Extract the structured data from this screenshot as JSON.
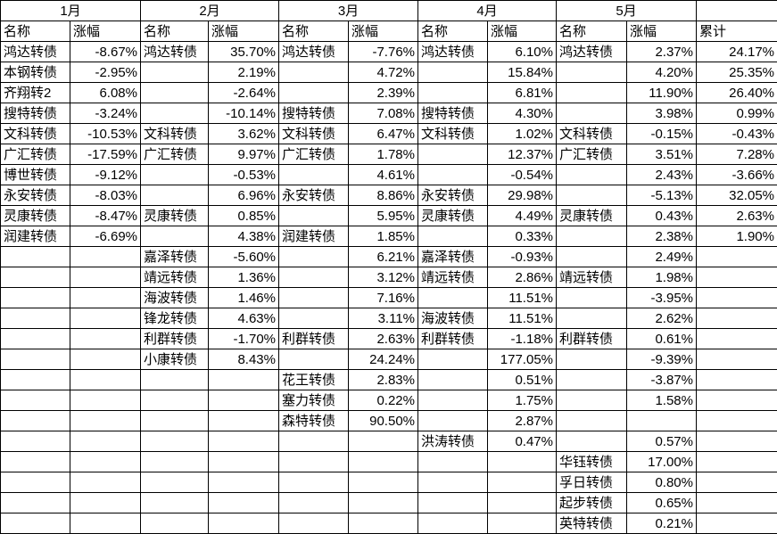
{
  "table": {
    "month_groups": [
      {
        "month": "1月",
        "col_headers": [
          "名称",
          "涨幅"
        ]
      },
      {
        "month": "2月",
        "col_headers": [
          "名称",
          "涨幅"
        ]
      },
      {
        "month": "3月",
        "col_headers": [
          "名称",
          "涨幅"
        ]
      },
      {
        "month": "4月",
        "col_headers": [
          "名称",
          "涨幅"
        ]
      },
      {
        "month": "5月",
        "col_headers": [
          "名称",
          "涨幅"
        ]
      }
    ],
    "cumulative_header": "累计",
    "rows": [
      [
        "鸿达转债",
        "-8.67%",
        "鸿达转债",
        "35.70%",
        "鸿达转债",
        "-7.76%",
        "鸿达转债",
        "6.10%",
        "鸿达转债",
        "2.37%",
        "24.17%"
      ],
      [
        "本钢转债",
        "-2.95%",
        "",
        "2.19%",
        "",
        "4.72%",
        "",
        "15.84%",
        "",
        "4.20%",
        "25.35%"
      ],
      [
        "齐翔转2",
        "6.08%",
        "",
        "-2.64%",
        "",
        "2.39%",
        "",
        "6.81%",
        "",
        "11.90%",
        "26.40%"
      ],
      [
        "搜特转债",
        "-3.24%",
        "",
        "-10.14%",
        "搜特转债",
        "7.08%",
        "搜特转债",
        "4.30%",
        "",
        "3.98%",
        "0.99%"
      ],
      [
        "文科转债",
        "-10.53%",
        "文科转债",
        "3.62%",
        "文科转债",
        "6.47%",
        "文科转债",
        "1.02%",
        "文科转债",
        "-0.15%",
        "-0.43%"
      ],
      [
        "广汇转债",
        "-17.59%",
        "广汇转债",
        "9.97%",
        "广汇转债",
        "1.78%",
        "",
        "12.37%",
        "广汇转债",
        "3.51%",
        "7.28%"
      ],
      [
        "博世转债",
        "-9.12%",
        "",
        "-0.53%",
        "",
        "4.61%",
        "",
        "-0.54%",
        "",
        "2.43%",
        "-3.66%"
      ],
      [
        "永安转债",
        "-8.03%",
        "",
        "6.96%",
        "永安转债",
        "8.86%",
        "永安转债",
        "29.98%",
        "",
        "-5.13%",
        "32.05%"
      ],
      [
        "灵康转债",
        "-8.47%",
        "灵康转债",
        "0.85%",
        "",
        "5.95%",
        "灵康转债",
        "4.49%",
        "灵康转债",
        "0.43%",
        "2.63%"
      ],
      [
        "润建转债",
        "-6.69%",
        "",
        "4.38%",
        "润建转债",
        "1.85%",
        "",
        "0.33%",
        "",
        "2.38%",
        "1.90%"
      ],
      [
        "",
        "",
        "嘉泽转债",
        "-5.60%",
        "",
        "6.21%",
        "嘉泽转债",
        "-0.93%",
        "",
        "2.49%",
        ""
      ],
      [
        "",
        "",
        "靖远转债",
        "1.36%",
        "",
        "3.12%",
        "靖远转债",
        "2.86%",
        "靖远转债",
        "1.98%",
        ""
      ],
      [
        "",
        "",
        "海波转债",
        "1.46%",
        "",
        "7.16%",
        "",
        "11.51%",
        "",
        "-3.95%",
        ""
      ],
      [
        "",
        "",
        "锋龙转债",
        "4.63%",
        "",
        "3.11%",
        "海波转债",
        "11.51%",
        "",
        "2.62%",
        ""
      ],
      [
        "",
        "",
        "利群转债",
        "-1.70%",
        "利群转债",
        "2.63%",
        "利群转债",
        "-1.18%",
        "利群转债",
        "0.61%",
        ""
      ],
      [
        "",
        "",
        "小康转债",
        "8.43%",
        "",
        "24.24%",
        "",
        "177.05%",
        "",
        "-9.39%",
        ""
      ],
      [
        "",
        "",
        "",
        "",
        "花王转债",
        "2.83%",
        "",
        "0.51%",
        "",
        "-3.87%",
        ""
      ],
      [
        "",
        "",
        "",
        "",
        "塞力转债",
        "0.22%",
        "",
        "1.75%",
        "",
        "1.58%",
        ""
      ],
      [
        "",
        "",
        "",
        "",
        "森特转债",
        "90.50%",
        "",
        "2.87%",
        "",
        "",
        ""
      ],
      [
        "",
        "",
        "",
        "",
        "",
        "",
        "洪涛转债",
        "0.47%",
        "",
        "0.57%",
        ""
      ],
      [
        "",
        "",
        "",
        "",
        "",
        "",
        "",
        "",
        "华钰转债",
        "17.00%",
        ""
      ],
      [
        "",
        "",
        "",
        "",
        "",
        "",
        "",
        "",
        "孚日转债",
        "0.80%",
        ""
      ],
      [
        "",
        "",
        "",
        "",
        "",
        "",
        "",
        "",
        "起步转债",
        "0.65%",
        ""
      ],
      [
        "",
        "",
        "",
        "",
        "",
        "",
        "",
        "",
        "英特转债",
        "0.21%",
        ""
      ]
    ]
  }
}
